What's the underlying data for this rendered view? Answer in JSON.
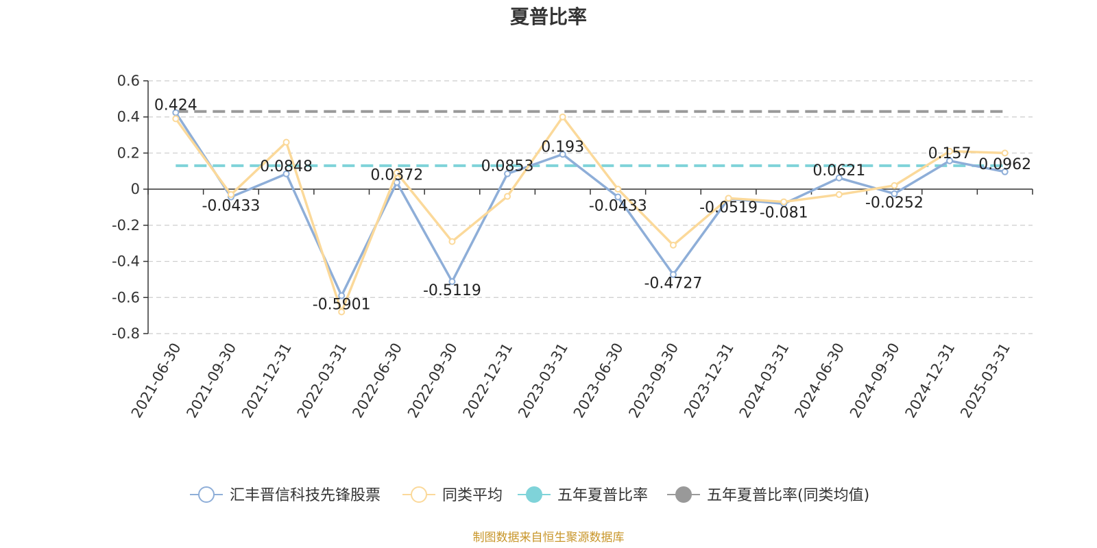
{
  "chart_data": {
    "type": "line",
    "title": "夏普比率",
    "categories": [
      "2021-06-30",
      "2021-09-30",
      "2021-12-31",
      "2022-03-31",
      "2022-06-30",
      "2022-09-30",
      "2022-12-31",
      "2023-03-31",
      "2023-06-30",
      "2023-09-30",
      "2023-12-31",
      "2024-03-31",
      "2024-06-30",
      "2024-09-30",
      "2024-12-31",
      "2025-03-31"
    ],
    "ylim": [
      -0.8,
      0.6
    ],
    "yticks": [
      "0.6",
      "0.4",
      "0.2",
      "0",
      "-0.2",
      "-0.4",
      "-0.6",
      "-0.8"
    ],
    "grid": true,
    "legend_position": "bottom",
    "series": [
      {
        "name": "汇丰晋信科技先锋股票",
        "color": "#8eaed8",
        "values": [
          0.424,
          -0.0433,
          0.0848,
          -0.5901,
          0.0372,
          -0.5119,
          0.0853,
          0.193,
          -0.0433,
          -0.4727,
          -0.0519,
          -0.081,
          0.0621,
          -0.0252,
          0.157,
          0.0962
        ],
        "labels": [
          "0.424",
          "-0.0433",
          "0.0848",
          "-0.5901",
          "0.0372",
          "-0.5119",
          "0.0853",
          "0.193",
          "-0.0433",
          "-0.4727",
          "-0.0519",
          "-0.081",
          "0.0621",
          "-0.0252",
          "0.157",
          "0.0962"
        ]
      },
      {
        "name": "同类平均",
        "color": "#fbd99a",
        "values": [
          0.39,
          -0.03,
          0.26,
          -0.68,
          0.09,
          -0.29,
          -0.04,
          0.4,
          0.0,
          -0.31,
          -0.05,
          -0.07,
          -0.03,
          0.02,
          0.21,
          0.2
        ]
      },
      {
        "name": "五年夏普比率",
        "color": "#7fd3d9",
        "type": "reference",
        "value": 0.13
      },
      {
        "name": "五年夏普比率(同类均值)",
        "color": "#999999",
        "type": "reference",
        "value": 0.43
      }
    ]
  },
  "footer": {
    "source": "制图数据来自恒生聚源数据库"
  }
}
